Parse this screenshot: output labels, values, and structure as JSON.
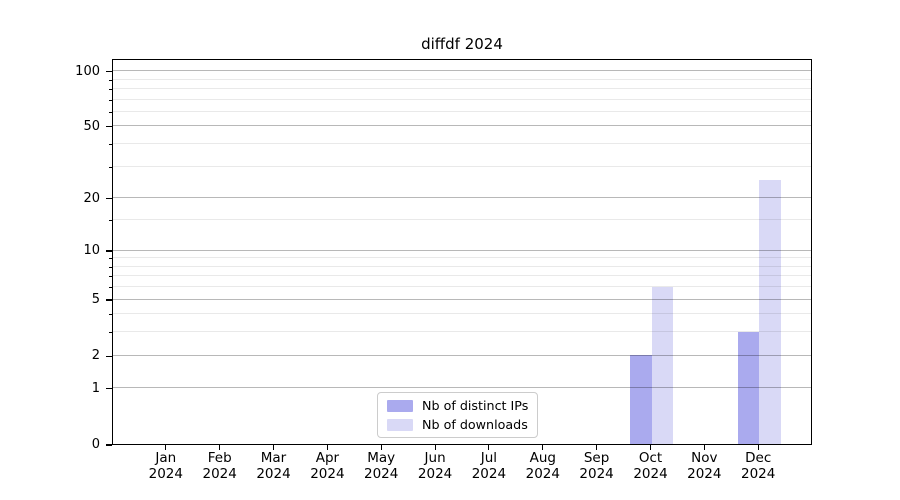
{
  "chart_data": {
    "type": "bar",
    "title": "diffdf 2024",
    "categories": [
      "Jan 2024",
      "Feb 2024",
      "Mar 2024",
      "Apr 2024",
      "May 2024",
      "Jun 2024",
      "Jul 2024",
      "Aug 2024",
      "Sep 2024",
      "Oct 2024",
      "Nov 2024",
      "Dec 2024"
    ],
    "series": [
      {
        "name": "Nb of distinct IPs",
        "color": "#aaaaee",
        "values": [
          0,
          0,
          0,
          0,
          0,
          0,
          0,
          0,
          0,
          2,
          0,
          3
        ]
      },
      {
        "name": "Nb of downloads",
        "color": "#d9d9f6",
        "values": [
          0,
          0,
          0,
          0,
          0,
          0,
          0,
          0,
          0,
          6,
          0,
          25
        ]
      }
    ],
    "xlabel": "",
    "ylabel": "",
    "y_scale": "log10(1+y)",
    "ylim": [
      0,
      117
    ],
    "y_major_ticks": [
      0,
      1,
      2,
      5,
      10,
      20,
      50,
      100
    ],
    "y_minor_ticks": [
      3,
      4,
      6,
      7,
      8,
      9,
      15,
      30,
      40,
      60,
      70,
      80,
      90
    ],
    "grid": "horizontal major and minor gridlines, drawn above bars",
    "legend_position": "lower center"
  },
  "style": {
    "major_gridline": "#b4b4b4",
    "minor_gridline": "#e8e8e8",
    "axis_color": "#000000",
    "legend_border": "#cccccc",
    "background": "#ffffff"
  }
}
